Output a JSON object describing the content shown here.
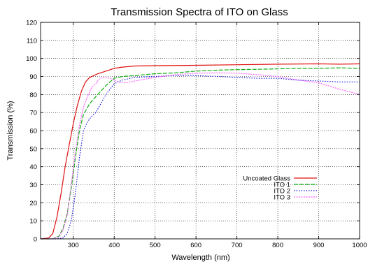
{
  "chart_data": {
    "type": "line",
    "title": "Transmission Spectra of ITO on Glass",
    "xlabel": "Wavelength (nm)",
    "ylabel": "Transmission (%)",
    "xlim": [
      220,
      1000
    ],
    "ylim": [
      0,
      120
    ],
    "xticks": [
      300,
      400,
      500,
      600,
      700,
      800,
      900,
      1000
    ],
    "yticks": [
      0,
      10,
      20,
      30,
      40,
      50,
      60,
      70,
      80,
      90,
      100,
      110,
      120
    ],
    "grid": true,
    "legend_position": "center-right",
    "series": [
      {
        "name": "Uncoated Glass",
        "color": "#e01010",
        "dash": "solid",
        "points": [
          [
            220,
            0
          ],
          [
            240,
            0.5
          ],
          [
            250,
            3
          ],
          [
            260,
            12
          ],
          [
            270,
            25
          ],
          [
            280,
            40
          ],
          [
            290,
            52
          ],
          [
            300,
            64
          ],
          [
            310,
            74
          ],
          [
            320,
            82
          ],
          [
            330,
            87
          ],
          [
            340,
            89.5
          ],
          [
            360,
            91.5
          ],
          [
            380,
            93
          ],
          [
            400,
            94.5
          ],
          [
            420,
            95.2
          ],
          [
            450,
            95.8
          ],
          [
            500,
            96
          ],
          [
            600,
            96.2
          ],
          [
            700,
            96.5
          ],
          [
            800,
            96.8
          ],
          [
            900,
            97
          ],
          [
            950,
            96.8
          ],
          [
            1000,
            97
          ]
        ]
      },
      {
        "name": "ITO 1",
        "color": "#10b010",
        "dash": "6 2",
        "points": [
          [
            220,
            0
          ],
          [
            250,
            0
          ],
          [
            265,
            1.5
          ],
          [
            275,
            6
          ],
          [
            285,
            14
          ],
          [
            295,
            28
          ],
          [
            305,
            45
          ],
          [
            315,
            60
          ],
          [
            325,
            69
          ],
          [
            340,
            75
          ],
          [
            360,
            80
          ],
          [
            380,
            85
          ],
          [
            400,
            89
          ],
          [
            420,
            90
          ],
          [
            450,
            90.5
          ],
          [
            500,
            91.5
          ],
          [
            550,
            92
          ],
          [
            600,
            93
          ],
          [
            650,
            93.5
          ],
          [
            700,
            93.8
          ],
          [
            750,
            94
          ],
          [
            800,
            94.2
          ],
          [
            850,
            94.5
          ],
          [
            900,
            94.5
          ],
          [
            950,
            94.8
          ],
          [
            1000,
            94.5
          ]
        ]
      },
      {
        "name": "ITO 2",
        "color": "#1a1ae0",
        "dash": "1.5 2",
        "points": [
          [
            220,
            0
          ],
          [
            260,
            0
          ],
          [
            275,
            0.5
          ],
          [
            285,
            3
          ],
          [
            295,
            10
          ],
          [
            305,
            25
          ],
          [
            315,
            45
          ],
          [
            325,
            60
          ],
          [
            335,
            65
          ],
          [
            345,
            68
          ],
          [
            355,
            70
          ],
          [
            365,
            74
          ],
          [
            380,
            80
          ],
          [
            400,
            86
          ],
          [
            420,
            88
          ],
          [
            450,
            89.5
          ],
          [
            500,
            90
          ],
          [
            550,
            90.5
          ],
          [
            600,
            90.5
          ],
          [
            650,
            90
          ],
          [
            700,
            89.5
          ],
          [
            750,
            89
          ],
          [
            800,
            89
          ],
          [
            850,
            88
          ],
          [
            900,
            87.5
          ],
          [
            950,
            87
          ],
          [
            1000,
            87
          ]
        ]
      },
      {
        "name": "ITO 3",
        "color": "#ff60ff",
        "dash": "2 1.5",
        "points": [
          [
            220,
            0
          ],
          [
            250,
            0
          ],
          [
            265,
            1
          ],
          [
            275,
            5
          ],
          [
            285,
            13
          ],
          [
            295,
            30
          ],
          [
            305,
            48
          ],
          [
            315,
            63
          ],
          [
            325,
            73
          ],
          [
            335,
            79
          ],
          [
            345,
            84
          ],
          [
            355,
            86
          ],
          [
            365,
            89
          ],
          [
            375,
            89.5
          ],
          [
            390,
            89
          ],
          [
            410,
            87
          ],
          [
            430,
            86.5
          ],
          [
            450,
            87.5
          ],
          [
            500,
            89.5
          ],
          [
            550,
            91
          ],
          [
            600,
            91.8
          ],
          [
            650,
            92
          ],
          [
            700,
            91.8
          ],
          [
            750,
            91
          ],
          [
            800,
            90
          ],
          [
            850,
            88
          ],
          [
            900,
            86.5
          ],
          [
            950,
            83
          ],
          [
            1000,
            80
          ]
        ]
      }
    ]
  }
}
